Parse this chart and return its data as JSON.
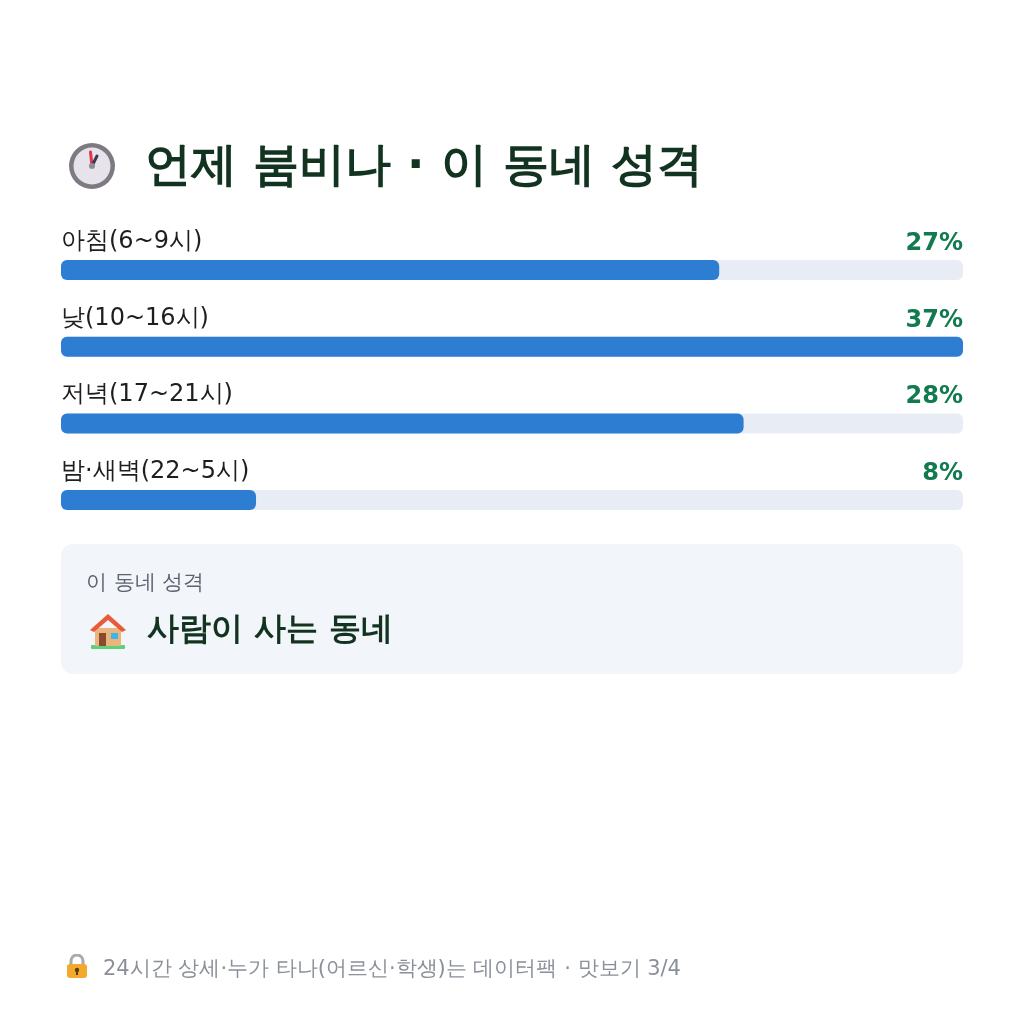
{
  "chart_data": {
    "type": "bar",
    "orientation": "horizontal",
    "title": "언제 붐비나 · 이 동네 성격",
    "categories": [
      "아침(6~9시)",
      "낮(10~16시)",
      "저녁(17~21시)",
      "밤·새벽(22~5시)"
    ],
    "values": [
      27,
      37,
      28,
      8
    ],
    "value_labels": [
      "27%",
      "37%",
      "28%",
      "8%"
    ],
    "color": "#2d7dd3",
    "xlim": [
      0,
      37
    ],
    "tick_labels": "y",
    "annotations": [
      "이 동네 성격",
      "사람이 사는 동네",
      "24시간 상세·누가 타나(어르신·학생)는 데이터팩 · 맛보기 3/4"
    ]
  }
}
